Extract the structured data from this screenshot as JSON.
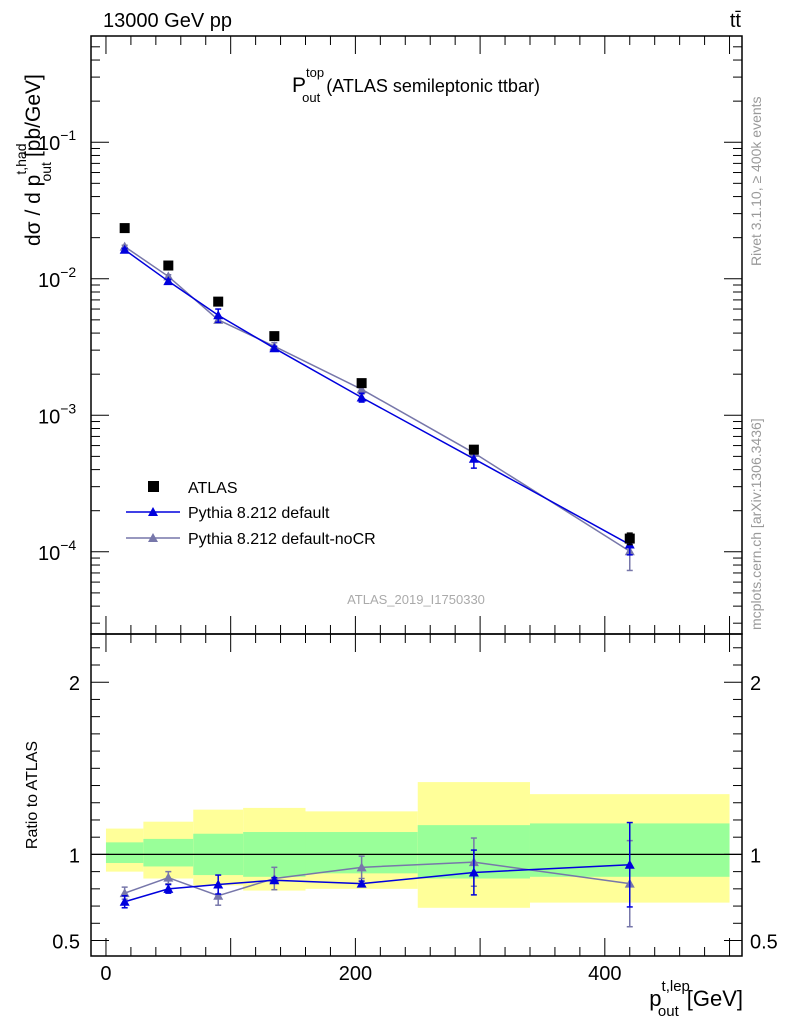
{
  "header": {
    "energy_label": "13000 GeV pp",
    "process_label": "tt̄"
  },
  "side_labels": {
    "rivet": "Rivet 3.1.10, ≥ 400k events",
    "mcplots": "mcplots.cern.ch [arXiv:1306.3436]"
  },
  "analysis_id": "ATLAS_2019_I1750330",
  "colors": {
    "data": "#000000",
    "pythia_default": "#0000dd",
    "pythia_nocr": "#7777aa",
    "band_inner": "#99ff99",
    "band_outer": "#ffff99"
  },
  "chart_data": [
    {
      "type": "scatter",
      "panel": "main",
      "title": "P_out^top (ATLAS semileptonic ttbar)",
      "title_main": "P",
      "title_sup": "top",
      "title_sub": "out",
      "title_rest": "(ATLAS semileptonic ttbar)",
      "ylabel": "dσ / d p_out^{t,had} [pb/GeV]",
      "ylabel_parts": {
        "prefix": "dσ / d p",
        "sup": "t,had",
        "sub": "out",
        "suffix": "[pb/GeV]"
      },
      "yscale": "log",
      "ylim": [
        2.5e-05,
        0.6
      ],
      "xlim": [
        -12,
        510
      ],
      "y_ticks": [
        {
          "value": 0.1,
          "base": "10",
          "exp": "−1"
        },
        {
          "value": 0.01,
          "base": "10",
          "exp": "−2"
        },
        {
          "value": 0.001,
          "base": "10",
          "exp": "−3"
        },
        {
          "value": 0.0001,
          "base": "10",
          "exp": "−4"
        }
      ],
      "legend_position": "bottom-left",
      "series": [
        {
          "name": "ATLAS",
          "key": "data",
          "marker": "square",
          "line": false,
          "x": [
            15,
            50,
            90,
            135,
            205,
            295,
            420
          ],
          "y": [
            0.0235,
            0.0125,
            0.0068,
            0.0038,
            0.00172,
            0.00056,
            0.000125
          ],
          "err": [
            0,
            0,
            0,
            0,
            0,
            0,
            1.2e-05
          ]
        },
        {
          "name": "Pythia 8.212 default",
          "key": "default",
          "marker": "triangle",
          "line": true,
          "x": [
            15,
            50,
            90,
            135,
            205,
            295,
            420
          ],
          "y": [
            0.0163,
            0.0096,
            0.0054,
            0.0031,
            0.00135,
            0.00048,
            0.000113
          ],
          "err": [
            0.0004,
            0.0003,
            0.0006,
            0.0001,
            0.0001,
            7e-05,
            1.8e-05
          ]
        },
        {
          "name": "Pythia 8.212 default-noCR",
          "key": "nocr",
          "marker": "triangle",
          "line": true,
          "x": [
            15,
            50,
            90,
            135,
            205,
            295,
            420
          ],
          "y": [
            0.0172,
            0.0104,
            0.005,
            0.0032,
            0.00155,
            0.00053,
            0.000101
          ],
          "err": [
            0.0004,
            0.0003,
            0.0002,
            0.0002,
            0.00012,
            6e-05,
            2.8e-05
          ]
        }
      ]
    },
    {
      "type": "scatter",
      "panel": "ratio",
      "ylabel": "Ratio to ATLAS",
      "xlabel": "p_out^{t,lep} [GeV]",
      "xlabel_parts": {
        "prefix": "p",
        "sup": "t,lep",
        "sub": "out",
        "suffix": "[GeV]"
      },
      "ylim": [
        0.41,
        2.28
      ],
      "xlim": [
        -12,
        510
      ],
      "y_ticks": [
        0.5,
        1,
        2
      ],
      "x_ticks": [
        0,
        200,
        400
      ],
      "bands": {
        "edges": [
          0,
          30,
          70,
          110,
          160,
          250,
          340,
          500
        ],
        "inner_low": [
          0.95,
          0.93,
          0.88,
          0.87,
          0.89,
          0.86,
          0.87
        ],
        "inner_high": [
          1.07,
          1.09,
          1.12,
          1.13,
          1.13,
          1.17,
          1.18
        ],
        "outer_low": [
          0.9,
          0.86,
          0.82,
          0.79,
          0.8,
          0.69,
          0.72
        ],
        "outer_high": [
          1.15,
          1.19,
          1.26,
          1.27,
          1.25,
          1.42,
          1.35
        ]
      },
      "series": [
        {
          "name": "Pythia 8.212 default",
          "key": "default",
          "x": [
            15,
            50,
            90,
            135,
            205,
            295,
            420
          ],
          "y": [
            0.725,
            0.8,
            0.825,
            0.85,
            0.83,
            0.895,
            0.94
          ],
          "err": [
            0.035,
            0.025,
            0.055,
            0.015,
            0.015,
            0.13,
            0.245
          ]
        },
        {
          "name": "Pythia 8.212 default-noCR",
          "key": "nocr",
          "x": [
            15,
            50,
            90,
            135,
            205,
            295,
            420
          ],
          "y": [
            0.775,
            0.865,
            0.76,
            0.86,
            0.925,
            0.955,
            0.83
          ],
          "err": [
            0.035,
            0.035,
            0.055,
            0.065,
            0.065,
            0.14,
            0.25
          ]
        }
      ]
    }
  ]
}
